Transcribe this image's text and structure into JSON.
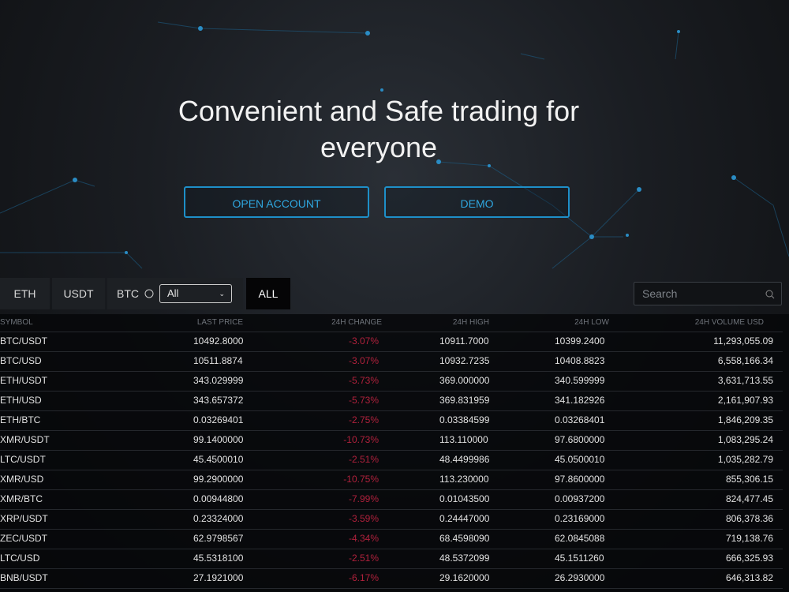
{
  "hero": {
    "title": "Convenient and Safe trading for everyone",
    "buttons": [
      "OPEN ACCOUNT",
      "DEMO"
    ]
  },
  "markets": {
    "tabs": [
      "ETH",
      "USDT",
      "BTC",
      "ALL"
    ],
    "select": "All",
    "search_placeholder": "Search"
  },
  "table": {
    "headers": [
      "SYMBOL",
      "LAST PRICE",
      "24H CHANGE",
      "24H HIGH",
      "24H LOW",
      "24H VOLUME USD"
    ],
    "rows": [
      [
        "BTC/USDT",
        "10492.8000",
        "-3.07%",
        "10911.7000",
        "10399.2400",
        "11,293,055.09"
      ],
      [
        "BTC/USD",
        "10511.8874",
        "-3.07%",
        "10932.7235",
        "10408.8823",
        "6,558,166.34"
      ],
      [
        "ETH/USDT",
        "343.029999",
        "-5.73%",
        "369.000000",
        "340.599999",
        "3,631,713.55"
      ],
      [
        "ETH/USD",
        "343.657372",
        "-5.73%",
        "369.831959",
        "341.182926",
        "2,161,907.93"
      ],
      [
        "ETH/BTC",
        "0.03269401",
        "-2.75%",
        "0.03384599",
        "0.03268401",
        "1,846,209.35"
      ],
      [
        "XMR/USDT",
        "99.1400000",
        "-10.73%",
        "113.110000",
        "97.6800000",
        "1,083,295.24"
      ],
      [
        "LTC/USDT",
        "45.4500010",
        "-2.51%",
        "48.4499986",
        "45.0500010",
        "1,035,282.79"
      ],
      [
        "XMR/USD",
        "99.2900000",
        "-10.75%",
        "113.230000",
        "97.8600000",
        "855,306.15"
      ],
      [
        "XMR/BTC",
        "0.00944800",
        "-7.99%",
        "0.01043500",
        "0.00937200",
        "824,477.45"
      ],
      [
        "XRP/USDT",
        "0.23324000",
        "-3.59%",
        "0.24447000",
        "0.23169000",
        "806,378.36"
      ],
      [
        "ZEC/USDT",
        "62.9798567",
        "-4.34%",
        "68.4598090",
        "62.0845088",
        "719,138.76"
      ],
      [
        "LTC/USD",
        "45.5318100",
        "-2.51%",
        "48.5372099",
        "45.1511260",
        "666,325.93"
      ],
      [
        "BNB/USDT",
        "27.1921000",
        "-6.17%",
        "29.1620000",
        "26.2930000",
        "646,313.82"
      ]
    ]
  }
}
